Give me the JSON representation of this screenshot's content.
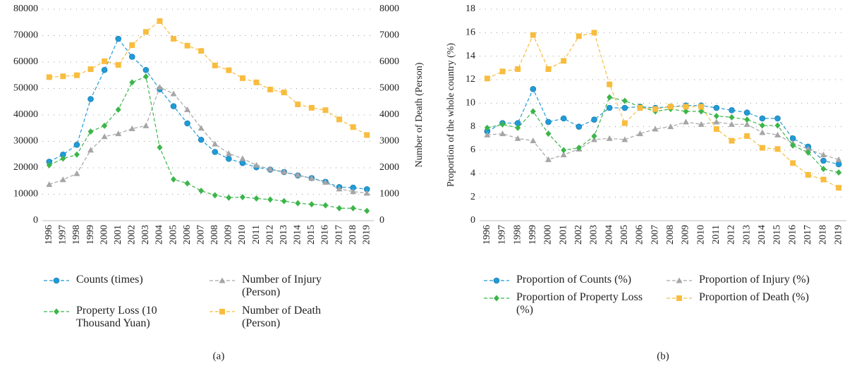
{
  "chart_data": [
    {
      "type": "line",
      "label": "(a)",
      "y2label": "Number of Death (Person)",
      "grid": true,
      "categories": [
        "1996",
        "1997",
        "1998",
        "1999",
        "2000",
        "2001",
        "2002",
        "2003",
        "2004",
        "2005",
        "2006",
        "2007",
        "2008",
        "2009",
        "2010",
        "2011",
        "2012",
        "2013",
        "2014",
        "2015",
        "2016",
        "2017",
        "2018",
        "2019"
      ],
      "ylim": [
        0,
        80000
      ],
      "yticks": [
        0,
        10000,
        20000,
        30000,
        40000,
        50000,
        60000,
        70000,
        80000
      ],
      "y2lim": [
        0,
        8000
      ],
      "y2ticks": [
        0,
        1000,
        2000,
        3000,
        4000,
        5000,
        6000,
        7000,
        8000
      ],
      "series": [
        {
          "name": "Counts (times)",
          "color": "#1f9bd7",
          "marker": "circle",
          "values": [
            22300,
            25000,
            28700,
            46000,
            57000,
            68800,
            62000,
            57000,
            49700,
            43300,
            36800,
            30600,
            26000,
            23400,
            21800,
            20200,
            19300,
            18400,
            17100,
            16100,
            14700,
            12700,
            12500,
            11900
          ]
        },
        {
          "name": "Number of Injury (Person)",
          "color": "#a6a6a6",
          "marker": "triangle",
          "values": [
            13700,
            15500,
            17800,
            26700,
            31800,
            32900,
            34800,
            35900,
            50500,
            48000,
            42000,
            35000,
            29000,
            25400,
            23500,
            21000,
            19500,
            18500,
            17300,
            16000,
            14500,
            12000,
            11000,
            10400
          ]
        },
        {
          "name": "Property Loss (10 Thousand Yuan)",
          "color": "#3cb54a",
          "marker": "diamond",
          "values": [
            21000,
            23500,
            25000,
            33700,
            35900,
            42000,
            52300,
            54500,
            27700,
            15600,
            14100,
            11300,
            9600,
            8700,
            8900,
            8400,
            8000,
            7400,
            6600,
            6200,
            5800,
            4700,
            4700,
            3700
          ]
        },
        {
          "name": "Number of Death (Person)",
          "color": "#f8bd3f",
          "marker": "square",
          "axis": "y2",
          "values": [
            5430,
            5460,
            5500,
            5730,
            6030,
            5890,
            6640,
            7140,
            7550,
            6880,
            6620,
            6420,
            5870,
            5690,
            5390,
            5230,
            4960,
            4850,
            4400,
            4270,
            4180,
            3830,
            3540,
            3240
          ]
        }
      ]
    },
    {
      "type": "line",
      "label": "(b)",
      "ylabel": "Proportion of the whole country (%)",
      "grid": true,
      "categories": [
        "1996",
        "1997",
        "1998",
        "1999",
        "2000",
        "2001",
        "2002",
        "2003",
        "2004",
        "2005",
        "2006",
        "2007",
        "2008",
        "2009",
        "2010",
        "2011",
        "2012",
        "2013",
        "2014",
        "2015",
        "2016",
        "2017",
        "2018",
        "2019"
      ],
      "ylim": [
        0,
        18
      ],
      "yticks": [
        0,
        2,
        4,
        6,
        8,
        10,
        12,
        14,
        16,
        18
      ],
      "series": [
        {
          "name": "Proportion of Counts (%)",
          "color": "#1f9bd7",
          "marker": "circle",
          "values": [
            7.6,
            8.3,
            8.3,
            11.2,
            8.4,
            8.7,
            8.0,
            8.6,
            9.6,
            9.6,
            9.7,
            9.6,
            9.7,
            9.8,
            9.8,
            9.6,
            9.4,
            9.2,
            8.7,
            8.7,
            7.0,
            6.3,
            5.1,
            4.8
          ]
        },
        {
          "name": "Proportion of Injury (%)",
          "color": "#a6a6a6",
          "marker": "triangle",
          "values": [
            7.3,
            7.4,
            7.0,
            6.8,
            5.2,
            5.6,
            6.1,
            6.9,
            7.0,
            6.9,
            7.4,
            7.8,
            8.0,
            8.4,
            8.2,
            8.4,
            8.2,
            8.2,
            7.5,
            7.3,
            6.6,
            6.1,
            5.6,
            5.2
          ]
        },
        {
          "name": "Proportion of Property Loss (%)",
          "color": "#3cb54a",
          "marker": "diamond",
          "values": [
            7.9,
            8.2,
            7.9,
            9.3,
            7.4,
            6.0,
            6.2,
            7.2,
            10.5,
            10.2,
            9.7,
            9.3,
            9.5,
            9.3,
            9.3,
            8.9,
            8.8,
            8.6,
            8.1,
            8.1,
            6.4,
            5.8,
            4.4,
            4.1
          ]
        },
        {
          "name": "Proportion of Death (%)",
          "color": "#f8bd3f",
          "marker": "square",
          "values": [
            12.1,
            12.7,
            12.9,
            15.8,
            12.9,
            13.6,
            15.7,
            16.0,
            11.6,
            8.3,
            9.6,
            9.5,
            9.7,
            9.7,
            9.7,
            7.8,
            6.8,
            7.2,
            6.2,
            6.1,
            4.9,
            3.9,
            3.5,
            2.8
          ]
        }
      ]
    }
  ]
}
